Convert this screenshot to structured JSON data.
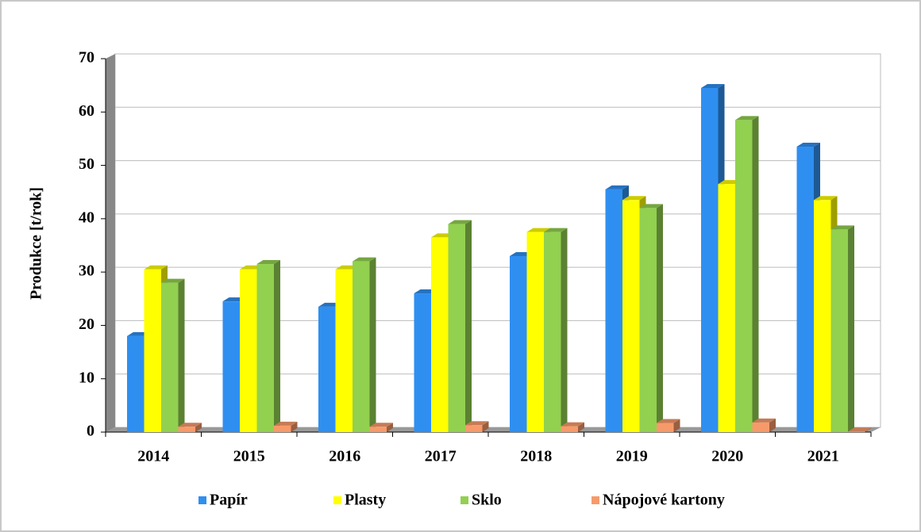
{
  "chart_data": {
    "type": "bar3d",
    "y_label": "Produkce [t/rok]",
    "categories": [
      "2014",
      "2015",
      "2016",
      "2017",
      "2018",
      "2019",
      "2020",
      "2021"
    ],
    "series": [
      {
        "name": "Papír",
        "color": "#2f8ff0",
        "values": [
          18,
          24.5,
          23.5,
          26,
          33,
          45.5,
          64.5,
          53.5
        ]
      },
      {
        "name": "Plasty",
        "color": "#ffff00",
        "values": [
          30.5,
          30.5,
          30.5,
          36.5,
          37.5,
          43.5,
          46.5,
          43.5
        ]
      },
      {
        "name": "Sklo",
        "color": "#92d050",
        "values": [
          28,
          31.5,
          32,
          39,
          37.5,
          42,
          58.5,
          38
        ]
      },
      {
        "name": "Nápojové kartony",
        "color": "#f79a6a",
        "values": [
          1,
          1.2,
          1,
          1.3,
          1.1,
          1.7,
          1.8,
          0.1
        ]
      }
    ],
    "ylim": [
      0,
      70
    ],
    "yticks": [
      0,
      10,
      20,
      30,
      40,
      50,
      60,
      70
    ],
    "grid": true,
    "legend": "bottom"
  }
}
